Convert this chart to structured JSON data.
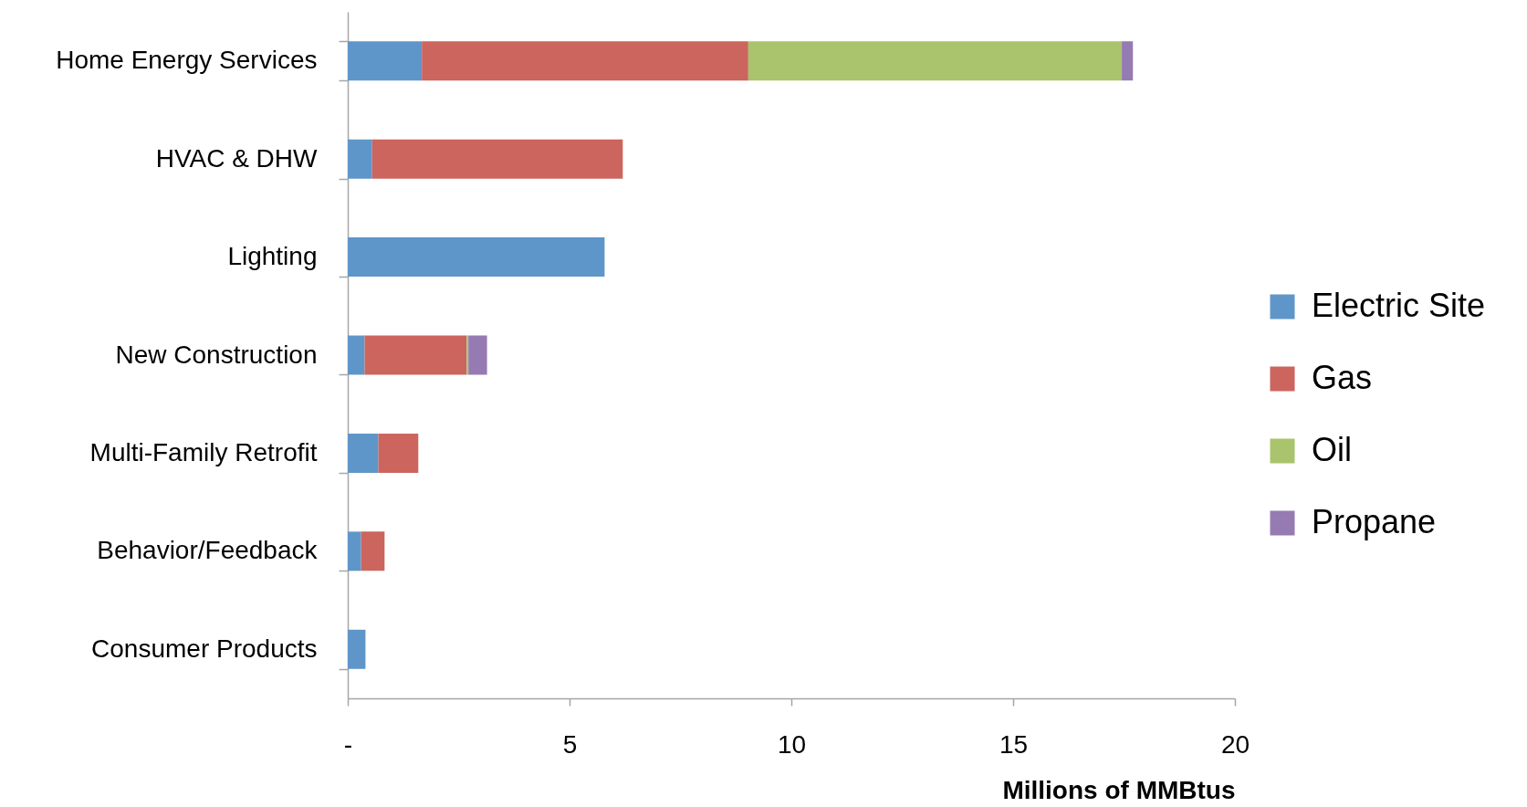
{
  "chart_data": {
    "type": "bar",
    "orientation": "horizontal",
    "stacked": true,
    "xlabel": "Millions of MMBtus",
    "categories": [
      "Home Energy Services",
      "HVAC & DHW",
      "Lighting",
      "New Construction",
      "Multi-Family Retrofit",
      "Behavior/Feedback",
      "Consumer Products"
    ],
    "series": [
      {
        "name": "Electric Site",
        "color": "#5f96c9",
        "values": [
          1.67,
          0.55,
          5.79,
          0.38,
          0.69,
          0.3,
          0.4
        ]
      },
      {
        "name": "Gas",
        "color": "#cc655e",
        "values": [
          7.36,
          5.65,
          null,
          2.3,
          0.9,
          0.53,
          null
        ]
      },
      {
        "name": "Oil",
        "color": "#a9c46c",
        "values": [
          8.42,
          null,
          null,
          0.04,
          null,
          null,
          null
        ]
      },
      {
        "name": "Propane",
        "color": "#957bb2",
        "values": [
          0.25,
          null,
          null,
          0.42,
          null,
          null,
          null
        ]
      }
    ],
    "xlim": [
      0,
      20
    ],
    "xticks": [
      {
        "value": 0,
        "label": "-"
      },
      5,
      10,
      15,
      20
    ],
    "grid": false,
    "legend": "right"
  }
}
